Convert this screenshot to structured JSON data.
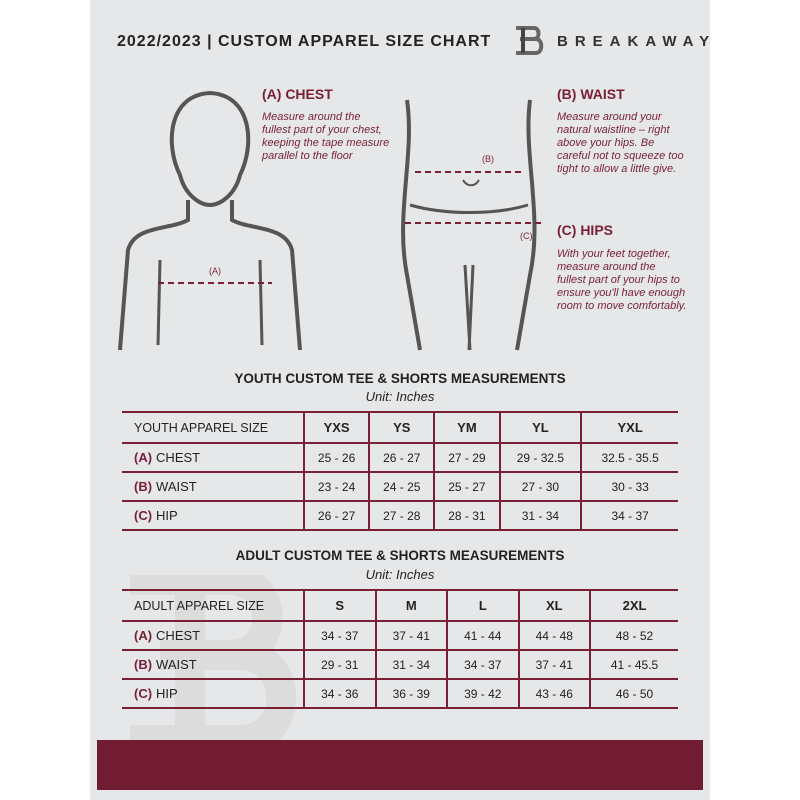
{
  "header": {
    "title": "2022/2023  |  CUSTOM APPAREL SIZE CHART",
    "brand": "BREAKAWAY"
  },
  "guide": {
    "chest": {
      "title": "(A) CHEST",
      "desc": "Measure around the fullest part of your chest, keeping the tape measure parallel to the floor",
      "marker": "(A)"
    },
    "waist": {
      "title": "(B) WAIST",
      "desc": "Measure around your natural waistline – right above your hips. Be careful not to squeeze too tight to allow a little give.",
      "marker": "(B)"
    },
    "hips": {
      "title": "(C) HIPS",
      "desc": "With your feet together, measure around the fullest part of your hips to ensure you'll have enough room to move comfortably.",
      "marker": "(C)"
    }
  },
  "youth": {
    "title": "YOUTH CUSTOM TEE & SHORTS MEASUREMENTS",
    "unit": "Unit: Inches",
    "headers": [
      "YOUTH APPAREL SIZE",
      "YXS",
      "YS",
      "YM",
      "YL",
      "YXL"
    ],
    "rows": [
      {
        "letter": "(A)",
        "label": "CHEST",
        "values": [
          "25 - 26",
          "26 - 27",
          "27 - 29",
          "29 - 32.5",
          "32.5 - 35.5"
        ]
      },
      {
        "letter": "(B)",
        "label": "WAIST",
        "values": [
          "23 - 24",
          "24 - 25",
          "25 - 27",
          "27 - 30",
          "30 - 33"
        ]
      },
      {
        "letter": "(C)",
        "label": "HIP",
        "values": [
          "26 - 27",
          "27 - 28",
          "28 - 31",
          "31 - 34",
          "34 - 37"
        ]
      }
    ]
  },
  "adult": {
    "title": "ADULT CUSTOM TEE & SHORTS MEASUREMENTS",
    "unit": "Unit: Inches",
    "headers": [
      "ADULT APPAREL SIZE",
      "S",
      "M",
      "L",
      "XL",
      "2XL"
    ],
    "rows": [
      {
        "letter": "(A)",
        "label": "CHEST",
        "values": [
          "34 - 37",
          "37 - 41",
          "41 - 44",
          "44 - 48",
          "48 - 52"
        ]
      },
      {
        "letter": "(B)",
        "label": "WAIST",
        "values": [
          "29 - 31",
          "31 - 34",
          "34 - 37",
          "37 - 41",
          "41 - 45.5"
        ]
      },
      {
        "letter": "(C)",
        "label": "HIP",
        "values": [
          "34 - 36",
          "36 - 39",
          "39 - 42",
          "43 - 46",
          "46 - 50"
        ]
      }
    ]
  },
  "colors": {
    "accent": "#721c33",
    "background": "#e6e7e8"
  }
}
